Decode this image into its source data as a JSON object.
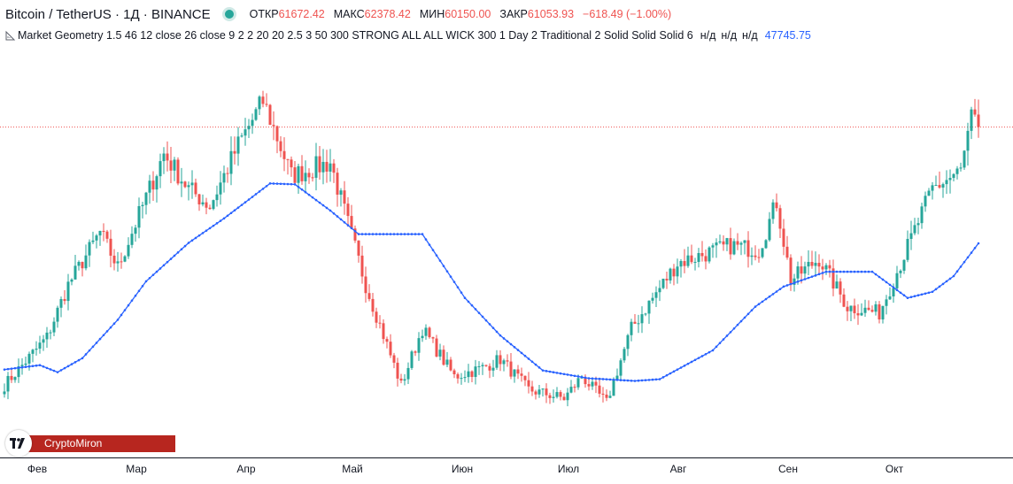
{
  "header": {
    "symbol": "Bitcoin / TetherUS · 1Д · BINANCE",
    "open_label": "ОТКР",
    "open_value": "61672.42",
    "high_label": "МАКС",
    "high_value": "62378.42",
    "low_label": "МИН",
    "low_value": "60150.00",
    "close_label": "ЗАКР",
    "close_value": "61053.93",
    "change": "−618.49 (−1.00%)",
    "status_color": "#26a69a"
  },
  "indicator": {
    "name": "Market Geometry 1.5 46 12 close 26 close 9 2 2 20 20 2.5 3 50 300 STRONG ALL ALL WICK 300 1 Day 2 Traditional 2 Solid Solid Solid 6",
    "na1": "н/д",
    "na2": "н/д",
    "na3": "н/д",
    "value": "47745.75",
    "value_color": "#2962ff"
  },
  "watermark": {
    "icon": "tv-logo-icon",
    "text": "CryptoMiron"
  },
  "chart_data": {
    "type": "candlestick",
    "symbol": "BTCUSDT",
    "interval": "1D",
    "x_ticks": [
      "Фев",
      "Мар",
      "Апр",
      "Май",
      "Июн",
      "Июл",
      "Авг",
      "Сен",
      "Окт"
    ],
    "y_range_approx": [
      28000,
      68000
    ],
    "last_close_line": 61053.93,
    "up_color": "#26a69a",
    "down_color": "#ef5350",
    "ma_color": "#2962ff",
    "grid": false,
    "close_keypoints": [
      [
        0,
        31500
      ],
      [
        12,
        37000
      ],
      [
        18,
        43000
      ],
      [
        27,
        49000
      ],
      [
        32,
        45000
      ],
      [
        45,
        58000
      ],
      [
        52,
        54000
      ],
      [
        58,
        52000
      ],
      [
        66,
        59000
      ],
      [
        73,
        64000
      ],
      [
        75,
        62000
      ],
      [
        81,
        55500
      ],
      [
        92,
        57000
      ],
      [
        102,
        43000
      ],
      [
        112,
        31500
      ],
      [
        118,
        38000
      ],
      [
        127,
        32500
      ],
      [
        135,
        33500
      ],
      [
        140,
        34500
      ],
      [
        148,
        31000
      ],
      [
        158,
        30000
      ],
      [
        163,
        32500
      ],
      [
        170,
        29500
      ],
      [
        177,
        38000
      ],
      [
        190,
        45500
      ],
      [
        205,
        47500
      ],
      [
        213,
        47000
      ],
      [
        218,
        52500
      ],
      [
        222,
        43500
      ],
      [
        230,
        46000
      ],
      [
        238,
        40500
      ],
      [
        247,
        39800
      ],
      [
        252,
        44500
      ],
      [
        262,
        54000
      ],
      [
        270,
        56000
      ],
      [
        273,
        62000
      ],
      [
        275,
        61054
      ]
    ],
    "ma_keypoints": [
      [
        0,
        33300
      ],
      [
        10,
        33800
      ],
      [
        15,
        33000
      ],
      [
        22,
        34600
      ],
      [
        32,
        39000
      ],
      [
        40,
        43400
      ],
      [
        52,
        47800
      ],
      [
        62,
        50600
      ],
      [
        75,
        54600
      ],
      [
        82,
        54500
      ],
      [
        92,
        51500
      ],
      [
        100,
        48800
      ],
      [
        118,
        48800
      ],
      [
        130,
        41500
      ],
      [
        140,
        37200
      ],
      [
        152,
        33200
      ],
      [
        165,
        32300
      ],
      [
        178,
        32000
      ],
      [
        185,
        32200
      ],
      [
        200,
        35500
      ],
      [
        212,
        40500
      ],
      [
        220,
        42800
      ],
      [
        232,
        44500
      ],
      [
        245,
        44500
      ],
      [
        255,
        41500
      ],
      [
        262,
        42200
      ],
      [
        268,
        44000
      ],
      [
        275,
        47745.75
      ]
    ],
    "month_start_index": [
      0,
      28,
      59,
      89,
      120,
      150,
      181,
      212,
      242
    ]
  }
}
